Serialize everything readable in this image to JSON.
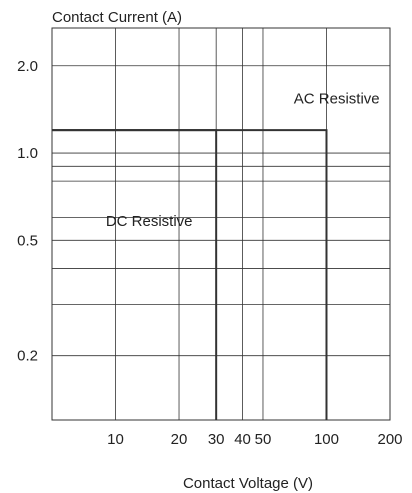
{
  "chart_data": {
    "type": "line",
    "title": "",
    "ylabel": "Contact Current (A)",
    "xlabel": "Contact Voltage (V)",
    "x_scale": "log",
    "y_scale": "log",
    "xlim": [
      5,
      200
    ],
    "ylim": [
      0.12,
      2.7
    ],
    "x_ticks": [
      10,
      20,
      30,
      40,
      50,
      100,
      200
    ],
    "x_tick_labels": [
      "10",
      "20",
      "30",
      "40",
      "50",
      "100",
      "200"
    ],
    "y_ticks": [
      2.0,
      1.0,
      0.5,
      0.2
    ],
    "y_tick_labels": [
      "2.0",
      "1.0",
      "0.5",
      "0.2"
    ],
    "x_grid_values": [
      10,
      20,
      30,
      40,
      50,
      100
    ],
    "y_grid_values": [
      2.0,
      1.0,
      0.8,
      0.6,
      0.5,
      0.4,
      0.3,
      0.2,
      0.9
    ],
    "grid": true,
    "series": [
      {
        "name": "AC Resistive",
        "x": [
          5,
          100,
          100
        ],
        "y": [
          1.2,
          1.2,
          0.12
        ]
      },
      {
        "name": "DC Resistive",
        "x": [
          5,
          30,
          30
        ],
        "y": [
          1.2,
          1.2,
          0.12
        ]
      }
    ],
    "annotations": [
      {
        "text": "AC Resistive",
        "x": 70,
        "y": 1.48
      },
      {
        "text": "DC Resistive",
        "x": 9,
        "y": 0.56
      }
    ]
  }
}
